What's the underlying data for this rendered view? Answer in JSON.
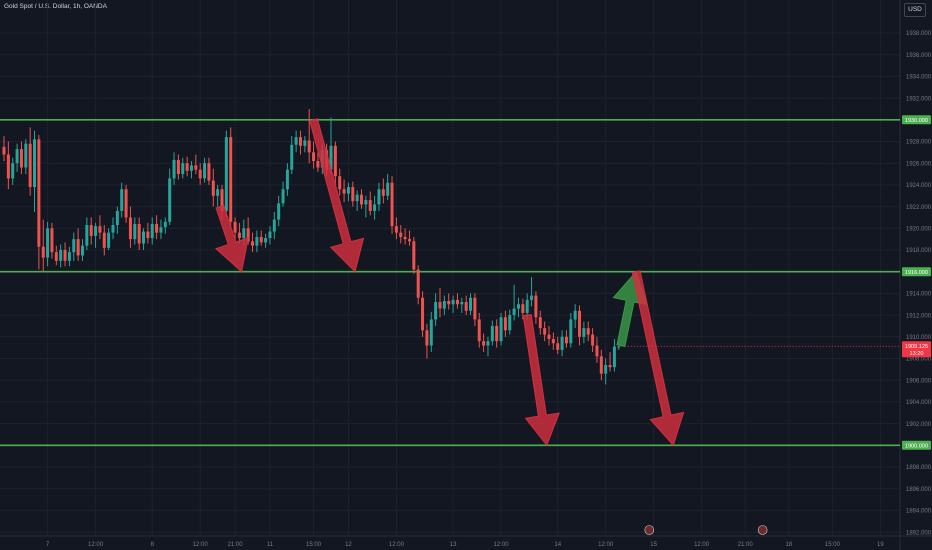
{
  "header": {
    "title": "Gold Spot / U.S. Dollar, 1h, OANDA",
    "currency": "USD"
  },
  "colors": {
    "background": "#131722",
    "grid": "#1e222d",
    "up": "#26a69a",
    "down": "#ef5350",
    "level_line": "#4caf50",
    "level_label_bg": "#4caf50",
    "arrow_red": "#d32f3f",
    "arrow_green": "#3a9a48",
    "price_badge": "#f23645",
    "axis_text": "#787b86"
  },
  "chart_data": {
    "type": "candlestick",
    "title": "Gold Spot / U.S. Dollar, 1h, OANDA",
    "ylim": [
      1891,
      1940
    ],
    "y_ticks": [
      1892,
      1894,
      1896,
      1898,
      1900,
      1902,
      1904,
      1906,
      1908,
      1910,
      1912,
      1914,
      1916,
      1918,
      1920,
      1922,
      1924,
      1926,
      1928,
      1930,
      1932,
      1934,
      1936,
      1938
    ],
    "y_tick_labels": [
      "1892.000",
      "1894.000",
      "1896.000",
      "1898.000",
      "1900.000",
      "1902.000",
      "1904.000",
      "1906.000",
      "1908.000",
      "1910.000",
      "1912.000",
      "1914.000",
      "1916.000",
      "1918.000",
      "1920.000",
      "1922.000",
      "1924.000",
      "1926.000",
      "1928.000",
      "1930.000",
      "1932.000",
      "1934.000",
      "1936.000",
      "1938.000"
    ],
    "x_tick_labels": [
      "7",
      "12:00",
      "8",
      "12:00",
      "21:00",
      "11",
      "15:00",
      "12",
      "12:00",
      "13",
      "12:00",
      "14",
      "12:00",
      "15",
      "12:00",
      "21:00",
      "18",
      "15:00",
      "19"
    ],
    "x_tick_candle_index": [
      10,
      21,
      34,
      45,
      53,
      61,
      71,
      79,
      90,
      103,
      114,
      127,
      138,
      149,
      160,
      170,
      180,
      190,
      201
    ],
    "levels": [
      {
        "price": 1930.0,
        "label": "1930.000"
      },
      {
        "price": 1916.0,
        "label": "1916.000"
      },
      {
        "price": 1900.0,
        "label": "1900.000"
      }
    ],
    "current_price": {
      "value": 1909.125,
      "label": "1909.125",
      "countdown": "13:20"
    },
    "candles": [
      {
        "o": 1927.5,
        "h": 1928.5,
        "l": 1926.2,
        "c": 1926.8
      },
      {
        "o": 1926.8,
        "h": 1928.0,
        "l": 1923.6,
        "c": 1924.6
      },
      {
        "o": 1924.6,
        "h": 1926.5,
        "l": 1924.0,
        "c": 1926.0
      },
      {
        "o": 1926.0,
        "h": 1927.8,
        "l": 1925.2,
        "c": 1927.3
      },
      {
        "o": 1927.3,
        "h": 1928.0,
        "l": 1925.0,
        "c": 1925.6
      },
      {
        "o": 1925.6,
        "h": 1928.2,
        "l": 1925.0,
        "c": 1927.8
      },
      {
        "o": 1927.8,
        "h": 1929.3,
        "l": 1923.0,
        "c": 1923.8
      },
      {
        "o": 1923.8,
        "h": 1929.0,
        "l": 1921.5,
        "c": 1928.2
      },
      {
        "o": 1928.2,
        "h": 1928.6,
        "l": 1916.2,
        "c": 1918.3
      },
      {
        "o": 1918.3,
        "h": 1920.8,
        "l": 1916.0,
        "c": 1917.3
      },
      {
        "o": 1917.3,
        "h": 1920.6,
        "l": 1916.5,
        "c": 1920.0
      },
      {
        "o": 1920.0,
        "h": 1920.5,
        "l": 1917.2,
        "c": 1917.8
      },
      {
        "o": 1917.8,
        "h": 1918.4,
        "l": 1916.6,
        "c": 1917.0
      },
      {
        "o": 1917.0,
        "h": 1918.5,
        "l": 1916.4,
        "c": 1918.0
      },
      {
        "o": 1918.0,
        "h": 1918.7,
        "l": 1916.5,
        "c": 1917.0
      },
      {
        "o": 1917.0,
        "h": 1918.3,
        "l": 1916.5,
        "c": 1917.8
      },
      {
        "o": 1917.8,
        "h": 1919.6,
        "l": 1917.0,
        "c": 1919.0
      },
      {
        "o": 1919.0,
        "h": 1920.0,
        "l": 1917.0,
        "c": 1917.5
      },
      {
        "o": 1917.5,
        "h": 1919.0,
        "l": 1917.0,
        "c": 1918.4
      },
      {
        "o": 1918.4,
        "h": 1921.0,
        "l": 1918.0,
        "c": 1920.3
      },
      {
        "o": 1920.3,
        "h": 1921.0,
        "l": 1918.5,
        "c": 1919.3
      },
      {
        "o": 1919.3,
        "h": 1920.5,
        "l": 1918.2,
        "c": 1920.2
      },
      {
        "o": 1920.2,
        "h": 1921.2,
        "l": 1919.0,
        "c": 1919.6
      },
      {
        "o": 1919.6,
        "h": 1920.3,
        "l": 1917.5,
        "c": 1918.2
      },
      {
        "o": 1918.2,
        "h": 1920.0,
        "l": 1918.0,
        "c": 1919.6
      },
      {
        "o": 1919.6,
        "h": 1921.0,
        "l": 1919.0,
        "c": 1920.3
      },
      {
        "o": 1920.3,
        "h": 1922.0,
        "l": 1919.5,
        "c": 1921.6
      },
      {
        "o": 1921.6,
        "h": 1924.2,
        "l": 1921.0,
        "c": 1923.6
      },
      {
        "o": 1923.6,
        "h": 1924.0,
        "l": 1920.5,
        "c": 1921.0
      },
      {
        "o": 1921.0,
        "h": 1922.0,
        "l": 1918.2,
        "c": 1919.0
      },
      {
        "o": 1919.0,
        "h": 1921.0,
        "l": 1918.5,
        "c": 1920.4
      },
      {
        "o": 1920.4,
        "h": 1921.0,
        "l": 1918.0,
        "c": 1918.6
      },
      {
        "o": 1918.6,
        "h": 1920.0,
        "l": 1918.0,
        "c": 1919.7
      },
      {
        "o": 1919.7,
        "h": 1920.5,
        "l": 1918.6,
        "c": 1919.1
      },
      {
        "o": 1919.1,
        "h": 1921.0,
        "l": 1918.5,
        "c": 1920.4
      },
      {
        "o": 1920.4,
        "h": 1921.2,
        "l": 1919.0,
        "c": 1919.6
      },
      {
        "o": 1919.6,
        "h": 1920.8,
        "l": 1919.0,
        "c": 1920.1
      },
      {
        "o": 1920.1,
        "h": 1921.0,
        "l": 1919.5,
        "c": 1920.6
      },
      {
        "o": 1920.6,
        "h": 1925.5,
        "l": 1920.3,
        "c": 1924.6
      },
      {
        "o": 1924.6,
        "h": 1927.0,
        "l": 1924.0,
        "c": 1926.3
      },
      {
        "o": 1926.3,
        "h": 1926.8,
        "l": 1924.5,
        "c": 1925.0
      },
      {
        "o": 1925.0,
        "h": 1926.5,
        "l": 1924.6,
        "c": 1926.0
      },
      {
        "o": 1926.0,
        "h": 1926.6,
        "l": 1924.8,
        "c": 1925.3
      },
      {
        "o": 1925.3,
        "h": 1926.2,
        "l": 1924.6,
        "c": 1925.8
      },
      {
        "o": 1925.8,
        "h": 1926.8,
        "l": 1925.0,
        "c": 1925.4
      },
      {
        "o": 1925.4,
        "h": 1926.0,
        "l": 1924.0,
        "c": 1924.6
      },
      {
        "o": 1924.6,
        "h": 1926.5,
        "l": 1924.2,
        "c": 1926.0
      },
      {
        "o": 1926.0,
        "h": 1926.5,
        "l": 1924.0,
        "c": 1924.4
      },
      {
        "o": 1924.4,
        "h": 1925.5,
        "l": 1922.0,
        "c": 1923.0
      },
      {
        "o": 1923.0,
        "h": 1924.0,
        "l": 1922.0,
        "c": 1923.6
      },
      {
        "o": 1923.6,
        "h": 1924.0,
        "l": 1920.8,
        "c": 1921.6
      },
      {
        "o": 1921.6,
        "h": 1929.0,
        "l": 1921.0,
        "c": 1928.4
      },
      {
        "o": 1928.4,
        "h": 1929.3,
        "l": 1920.0,
        "c": 1920.6
      },
      {
        "o": 1920.6,
        "h": 1921.0,
        "l": 1919.0,
        "c": 1919.6
      },
      {
        "o": 1919.6,
        "h": 1920.5,
        "l": 1918.6,
        "c": 1919.1
      },
      {
        "o": 1919.1,
        "h": 1920.8,
        "l": 1918.4,
        "c": 1920.0
      },
      {
        "o": 1920.0,
        "h": 1921.0,
        "l": 1918.5,
        "c": 1918.8
      },
      {
        "o": 1918.8,
        "h": 1919.6,
        "l": 1917.8,
        "c": 1918.4
      },
      {
        "o": 1918.4,
        "h": 1919.8,
        "l": 1917.8,
        "c": 1919.2
      },
      {
        "o": 1919.2,
        "h": 1919.8,
        "l": 1918.4,
        "c": 1918.7
      },
      {
        "o": 1918.7,
        "h": 1919.5,
        "l": 1918.2,
        "c": 1919.1
      },
      {
        "o": 1919.1,
        "h": 1920.2,
        "l": 1918.5,
        "c": 1919.7
      },
      {
        "o": 1919.7,
        "h": 1921.5,
        "l": 1919.0,
        "c": 1920.8
      },
      {
        "o": 1920.8,
        "h": 1923.0,
        "l": 1920.2,
        "c": 1922.3
      },
      {
        "o": 1922.3,
        "h": 1924.3,
        "l": 1922.0,
        "c": 1923.6
      },
      {
        "o": 1923.6,
        "h": 1926.0,
        "l": 1923.0,
        "c": 1925.4
      },
      {
        "o": 1925.4,
        "h": 1928.5,
        "l": 1925.0,
        "c": 1927.7
      },
      {
        "o": 1927.7,
        "h": 1929.0,
        "l": 1927.0,
        "c": 1928.4
      },
      {
        "o": 1928.4,
        "h": 1929.0,
        "l": 1926.8,
        "c": 1927.6
      },
      {
        "o": 1927.6,
        "h": 1928.5,
        "l": 1927.0,
        "c": 1928.1
      },
      {
        "o": 1928.1,
        "h": 1931.0,
        "l": 1926.0,
        "c": 1927.0
      },
      {
        "o": 1927.0,
        "h": 1928.0,
        "l": 1925.5,
        "c": 1926.2
      },
      {
        "o": 1926.2,
        "h": 1927.0,
        "l": 1925.2,
        "c": 1925.6
      },
      {
        "o": 1925.6,
        "h": 1927.8,
        "l": 1925.0,
        "c": 1927.2
      },
      {
        "o": 1927.2,
        "h": 1927.8,
        "l": 1924.8,
        "c": 1925.4
      },
      {
        "o": 1925.4,
        "h": 1930.2,
        "l": 1925.0,
        "c": 1927.6
      },
      {
        "o": 1927.6,
        "h": 1928.0,
        "l": 1924.0,
        "c": 1924.8
      },
      {
        "o": 1924.8,
        "h": 1925.5,
        "l": 1923.0,
        "c": 1923.6
      },
      {
        "o": 1923.6,
        "h": 1924.5,
        "l": 1922.4,
        "c": 1923.2
      },
      {
        "o": 1923.2,
        "h": 1924.2,
        "l": 1922.5,
        "c": 1923.8
      },
      {
        "o": 1923.8,
        "h": 1924.3,
        "l": 1922.0,
        "c": 1922.5
      },
      {
        "o": 1922.5,
        "h": 1923.5,
        "l": 1921.6,
        "c": 1923.1
      },
      {
        "o": 1923.1,
        "h": 1923.6,
        "l": 1921.8,
        "c": 1922.2
      },
      {
        "o": 1922.2,
        "h": 1923.0,
        "l": 1921.0,
        "c": 1922.6
      },
      {
        "o": 1922.6,
        "h": 1923.4,
        "l": 1921.2,
        "c": 1921.6
      },
      {
        "o": 1921.6,
        "h": 1923.0,
        "l": 1920.8,
        "c": 1922.2
      },
      {
        "o": 1922.2,
        "h": 1924.2,
        "l": 1921.6,
        "c": 1923.6
      },
      {
        "o": 1923.6,
        "h": 1924.6,
        "l": 1922.3,
        "c": 1923.0
      },
      {
        "o": 1923.0,
        "h": 1925.0,
        "l": 1922.6,
        "c": 1924.2
      },
      {
        "o": 1924.2,
        "h": 1924.8,
        "l": 1919.5,
        "c": 1920.2
      },
      {
        "o": 1920.2,
        "h": 1921.0,
        "l": 1919.0,
        "c": 1919.6
      },
      {
        "o": 1919.6,
        "h": 1920.3,
        "l": 1918.6,
        "c": 1919.2
      },
      {
        "o": 1919.2,
        "h": 1920.0,
        "l": 1918.5,
        "c": 1919.0
      },
      {
        "o": 1919.0,
        "h": 1919.8,
        "l": 1918.4,
        "c": 1918.8
      },
      {
        "o": 1918.8,
        "h": 1919.2,
        "l": 1915.8,
        "c": 1916.2
      },
      {
        "o": 1916.2,
        "h": 1916.6,
        "l": 1913.0,
        "c": 1913.6
      },
      {
        "o": 1913.6,
        "h": 1914.2,
        "l": 1910.0,
        "c": 1910.6
      },
      {
        "o": 1910.6,
        "h": 1911.2,
        "l": 1908.0,
        "c": 1909.2
      },
      {
        "o": 1909.2,
        "h": 1912.3,
        "l": 1908.6,
        "c": 1911.6
      },
      {
        "o": 1911.6,
        "h": 1914.0,
        "l": 1911.0,
        "c": 1913.2
      },
      {
        "o": 1913.2,
        "h": 1914.5,
        "l": 1911.8,
        "c": 1912.6
      },
      {
        "o": 1912.6,
        "h": 1913.8,
        "l": 1912.0,
        "c": 1913.3
      },
      {
        "o": 1913.3,
        "h": 1914.0,
        "l": 1912.5,
        "c": 1913.0
      },
      {
        "o": 1913.0,
        "h": 1913.8,
        "l": 1912.2,
        "c": 1913.4
      },
      {
        "o": 1913.4,
        "h": 1914.0,
        "l": 1912.6,
        "c": 1913.0
      },
      {
        "o": 1913.0,
        "h": 1913.6,
        "l": 1912.2,
        "c": 1913.2
      },
      {
        "o": 1913.2,
        "h": 1913.8,
        "l": 1912.0,
        "c": 1912.4
      },
      {
        "o": 1912.4,
        "h": 1914.0,
        "l": 1912.0,
        "c": 1913.6
      },
      {
        "o": 1913.6,
        "h": 1914.0,
        "l": 1911.0,
        "c": 1911.6
      },
      {
        "o": 1911.6,
        "h": 1912.2,
        "l": 1909.0,
        "c": 1909.6
      },
      {
        "o": 1909.6,
        "h": 1910.3,
        "l": 1908.6,
        "c": 1909.2
      },
      {
        "o": 1909.2,
        "h": 1910.0,
        "l": 1908.2,
        "c": 1909.6
      },
      {
        "o": 1909.6,
        "h": 1911.5,
        "l": 1909.2,
        "c": 1911.0
      },
      {
        "o": 1911.0,
        "h": 1911.6,
        "l": 1909.0,
        "c": 1909.6
      },
      {
        "o": 1909.6,
        "h": 1912.2,
        "l": 1909.2,
        "c": 1911.8
      },
      {
        "o": 1911.8,
        "h": 1912.4,
        "l": 1910.0,
        "c": 1910.6
      },
      {
        "o": 1910.6,
        "h": 1912.5,
        "l": 1910.2,
        "c": 1912.0
      },
      {
        "o": 1912.0,
        "h": 1914.8,
        "l": 1911.5,
        "c": 1912.6
      },
      {
        "o": 1912.6,
        "h": 1913.6,
        "l": 1911.8,
        "c": 1913.0
      },
      {
        "o": 1913.0,
        "h": 1913.5,
        "l": 1911.6,
        "c": 1912.2
      },
      {
        "o": 1912.2,
        "h": 1914.0,
        "l": 1911.6,
        "c": 1913.4
      },
      {
        "o": 1913.4,
        "h": 1915.5,
        "l": 1912.8,
        "c": 1913.8
      },
      {
        "o": 1913.8,
        "h": 1914.2,
        "l": 1911.2,
        "c": 1911.8
      },
      {
        "o": 1911.8,
        "h": 1912.4,
        "l": 1910.2,
        "c": 1910.8
      },
      {
        "o": 1910.8,
        "h": 1911.4,
        "l": 1909.6,
        "c": 1910.2
      },
      {
        "o": 1910.2,
        "h": 1911.0,
        "l": 1909.2,
        "c": 1909.8
      },
      {
        "o": 1909.8,
        "h": 1910.4,
        "l": 1908.8,
        "c": 1909.4
      },
      {
        "o": 1909.4,
        "h": 1910.0,
        "l": 1908.4,
        "c": 1908.8
      },
      {
        "o": 1908.8,
        "h": 1910.6,
        "l": 1908.2,
        "c": 1910.0
      },
      {
        "o": 1910.0,
        "h": 1910.6,
        "l": 1909.0,
        "c": 1909.4
      },
      {
        "o": 1909.4,
        "h": 1912.2,
        "l": 1909.0,
        "c": 1911.6
      },
      {
        "o": 1911.6,
        "h": 1913.0,
        "l": 1910.8,
        "c": 1912.4
      },
      {
        "o": 1912.4,
        "h": 1912.9,
        "l": 1909.2,
        "c": 1910.0
      },
      {
        "o": 1910.0,
        "h": 1911.4,
        "l": 1909.4,
        "c": 1910.8
      },
      {
        "o": 1910.8,
        "h": 1911.4,
        "l": 1909.6,
        "c": 1910.2
      },
      {
        "o": 1910.2,
        "h": 1910.8,
        "l": 1908.6,
        "c": 1909.2
      },
      {
        "o": 1909.2,
        "h": 1910.0,
        "l": 1907.6,
        "c": 1908.2
      },
      {
        "o": 1908.2,
        "h": 1908.8,
        "l": 1906.0,
        "c": 1906.6
      },
      {
        "o": 1906.6,
        "h": 1908.0,
        "l": 1905.6,
        "c": 1907.4
      },
      {
        "o": 1907.4,
        "h": 1908.6,
        "l": 1906.8,
        "c": 1907.2
      },
      {
        "o": 1907.2,
        "h": 1909.8,
        "l": 1906.8,
        "c": 1909.1
      },
      {
        "o": 1909.1,
        "h": 1909.5,
        "l": 1908.8,
        "c": 1909.1
      }
    ],
    "arrows": [
      {
        "color": "red",
        "from": [
          49.5,
          1922.0
        ],
        "to": [
          54.5,
          1916.0
        ]
      },
      {
        "color": "red",
        "from": [
          71.0,
          1930.0
        ],
        "to": [
          80.5,
          1916.0
        ]
      },
      {
        "color": "red",
        "from": [
          120.0,
          1912.0
        ],
        "to": [
          124.5,
          1900.0
        ]
      },
      {
        "color": "green",
        "from": [
          141.5,
          1909.2
        ],
        "to": [
          145.0,
          1916.0
        ]
      },
      {
        "color": "red",
        "from": [
          145.0,
          1916.0
        ],
        "to": [
          153.5,
          1900.0
        ]
      }
    ]
  }
}
